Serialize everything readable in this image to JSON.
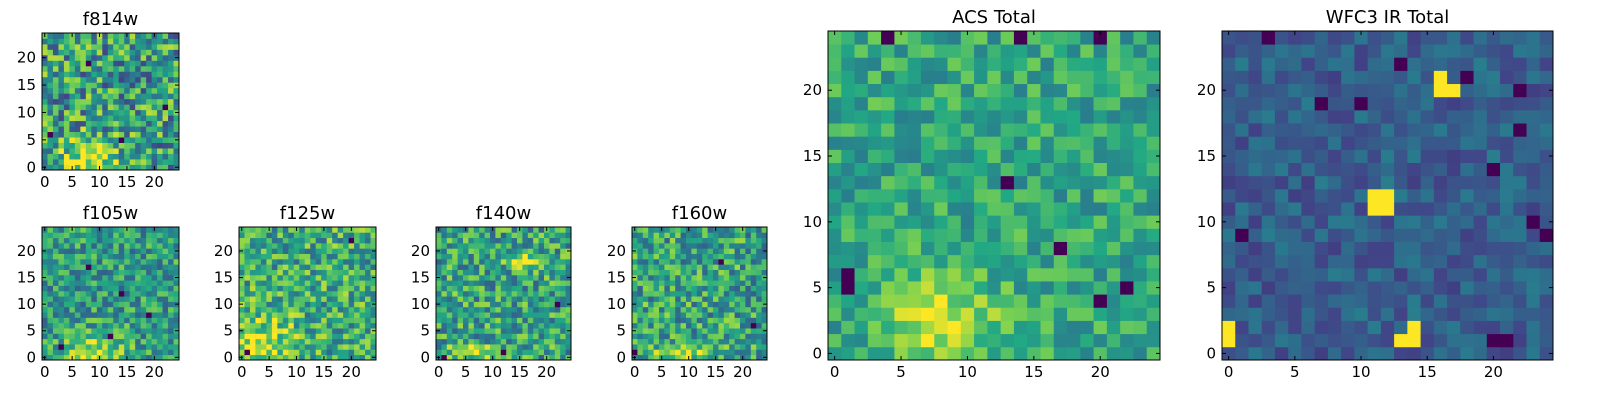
{
  "colormap": {
    "name": "viridis",
    "stops": [
      "#440154",
      "#414487",
      "#2a788e",
      "#22a884",
      "#7ad151",
      "#fde725"
    ]
  },
  "chart_data": [
    {
      "id": "f814w",
      "type": "heatmap",
      "title": "f814w",
      "xlim": [
        0,
        25
      ],
      "ylim": [
        0,
        25
      ],
      "xticks": [
        0,
        5,
        10,
        15,
        20
      ],
      "yticks": [
        0,
        5,
        10,
        15,
        20
      ],
      "grid_size": 25,
      "seed": 11,
      "baseline": 0.55,
      "noise": 0.35,
      "hotspots": [
        {
          "x": 8,
          "y": 1,
          "sx": 4,
          "sy": 3,
          "amp": 0.45
        }
      ],
      "dark_pixels": [
        [
          1,
          6
        ],
        [
          8,
          19
        ],
        [
          14,
          5
        ],
        [
          22,
          11
        ]
      ]
    },
    {
      "id": "f105w",
      "type": "heatmap",
      "title": "f105w",
      "xlim": [
        0,
        25
      ],
      "ylim": [
        0,
        25
      ],
      "xticks": [
        0,
        5,
        10,
        15,
        20
      ],
      "yticks": [
        0,
        5,
        10,
        15,
        20
      ],
      "grid_size": 25,
      "seed": 23,
      "baseline": 0.55,
      "noise": 0.25,
      "hotspots": [
        {
          "x": 9,
          "y": 0,
          "sx": 4,
          "sy": 3,
          "amp": 0.4
        }
      ],
      "dark_pixels": [
        [
          8,
          17
        ],
        [
          14,
          12
        ],
        [
          19,
          8
        ],
        [
          3,
          2
        ],
        [
          12,
          4
        ]
      ]
    },
    {
      "id": "f125w",
      "type": "heatmap",
      "title": "f125w",
      "xlim": [
        0,
        25
      ],
      "ylim": [
        0,
        25
      ],
      "xticks": [
        0,
        5,
        10,
        15,
        20
      ],
      "yticks": [
        0,
        5,
        10,
        15,
        20
      ],
      "grid_size": 25,
      "seed": 37,
      "baseline": 0.62,
      "noise": 0.28,
      "hotspots": [
        {
          "x": 4,
          "y": 2,
          "sx": 4,
          "sy": 4,
          "amp": 0.3
        }
      ],
      "dark_pixels": [
        [
          1,
          1
        ],
        [
          20,
          22
        ]
      ]
    },
    {
      "id": "f140w",
      "type": "heatmap",
      "title": "f140w",
      "xlim": [
        0,
        25
      ],
      "ylim": [
        0,
        25
      ],
      "xticks": [
        0,
        5,
        10,
        15,
        20
      ],
      "yticks": [
        0,
        5,
        10,
        15,
        20
      ],
      "grid_size": 25,
      "seed": 41,
      "baseline": 0.58,
      "noise": 0.28,
      "hotspots": [
        {
          "x": 16,
          "y": 18,
          "sx": 2,
          "sy": 1,
          "amp": 0.35
        },
        {
          "x": 6,
          "y": 1,
          "sx": 3,
          "sy": 1,
          "amp": 0.35
        }
      ],
      "dark_pixels": [
        [
          12,
          1
        ],
        [
          22,
          10
        ],
        [
          1,
          0
        ]
      ]
    },
    {
      "id": "f160w",
      "type": "heatmap",
      "title": "f160w",
      "xlim": [
        0,
        25
      ],
      "ylim": [
        0,
        25
      ],
      "xticks": [
        0,
        5,
        10,
        15,
        20
      ],
      "yticks": [
        0,
        5,
        10,
        15,
        20
      ],
      "grid_size": 25,
      "seed": 53,
      "baseline": 0.58,
      "noise": 0.28,
      "hotspots": [
        {
          "x": 9,
          "y": 1,
          "sx": 4,
          "sy": 1,
          "amp": 0.4
        }
      ],
      "dark_pixels": [
        [
          0,
          1
        ],
        [
          16,
          18
        ],
        [
          22,
          6
        ]
      ]
    },
    {
      "id": "acs_total",
      "type": "heatmap",
      "title": "ACS Total",
      "xlim": [
        0,
        25
      ],
      "ylim": [
        0,
        25
      ],
      "xticks": [
        0,
        5,
        10,
        15,
        20
      ],
      "yticks": [
        0,
        5,
        10,
        15,
        20
      ],
      "grid_size": 25,
      "seed": 67,
      "baseline": 0.6,
      "noise": 0.18,
      "hotspots": [
        {
          "x": 8,
          "y": 2,
          "sx": 3,
          "sy": 2.5,
          "amp": 0.35
        }
      ],
      "dark_pixels": [
        [
          1,
          5
        ],
        [
          1,
          6
        ],
        [
          4,
          24
        ],
        [
          14,
          24
        ],
        [
          20,
          24
        ],
        [
          17,
          8
        ],
        [
          20,
          4
        ],
        [
          22,
          5
        ],
        [
          13,
          13
        ]
      ]
    },
    {
      "id": "wfc3_ir_total",
      "type": "heatmap",
      "title": "WFC3 IR Total",
      "xlim": [
        0,
        25
      ],
      "ylim": [
        0,
        25
      ],
      "xticks": [
        0,
        5,
        10,
        15,
        20
      ],
      "yticks": [
        0,
        5,
        10,
        15,
        20
      ],
      "grid_size": 25,
      "seed": 79,
      "baseline": 0.3,
      "noise": 0.12,
      "bright_pixels": [
        [
          11,
          12
        ],
        [
          12,
          12
        ],
        [
          11,
          11
        ],
        [
          12,
          11
        ],
        [
          16,
          21
        ],
        [
          17,
          20
        ],
        [
          16,
          20
        ],
        [
          0,
          1
        ],
        [
          0,
          2
        ],
        [
          13,
          1
        ],
        [
          14,
          1
        ],
        [
          14,
          2
        ]
      ],
      "dark_pixels": [
        [
          3,
          24
        ],
        [
          7,
          19
        ],
        [
          10,
          19
        ],
        [
          13,
          22
        ],
        [
          18,
          21
        ],
        [
          22,
          20
        ],
        [
          24,
          9
        ],
        [
          23,
          10
        ],
        [
          21,
          1
        ],
        [
          20,
          1
        ],
        [
          22,
          17
        ],
        [
          20,
          14
        ],
        [
          1,
          9
        ]
      ]
    }
  ]
}
